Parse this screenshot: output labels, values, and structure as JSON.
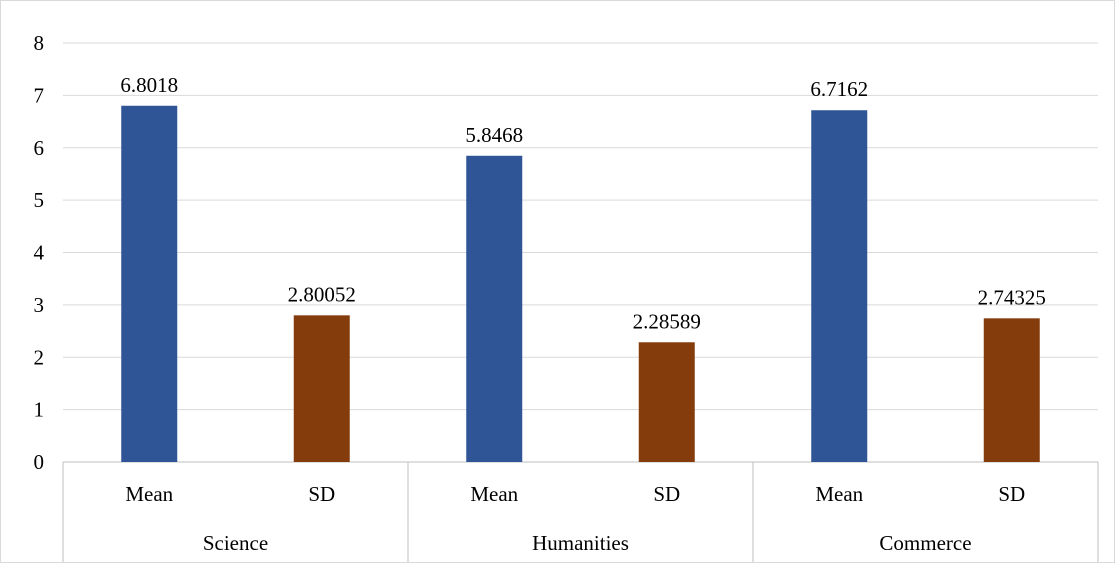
{
  "chart_data": {
    "type": "bar",
    "title": "",
    "xlabel": "",
    "ylabel": "",
    "ylim": [
      0,
      8
    ],
    "yticks": [
      0,
      1,
      2,
      3,
      4,
      5,
      6,
      7,
      8
    ],
    "grid": true,
    "legend": "none",
    "groups": [
      {
        "name": "Science",
        "bars": [
          {
            "label": "Mean",
            "value": 6.8018,
            "value_label": "6.8018",
            "color": "#2f5597"
          },
          {
            "label": "SD",
            "value": 2.80052,
            "value_label": "2.80052",
            "color": "#843c0c"
          }
        ]
      },
      {
        "name": "Humanities",
        "bars": [
          {
            "label": "Mean",
            "value": 5.8468,
            "value_label": "5.8468",
            "color": "#2f5597"
          },
          {
            "label": "SD",
            "value": 2.28589,
            "value_label": "2.28589",
            "color": "#843c0c"
          }
        ]
      },
      {
        "name": "Commerce",
        "bars": [
          {
            "label": "Mean",
            "value": 6.7162,
            "value_label": "6.7162",
            "color": "#2f5597"
          },
          {
            "label": "SD",
            "value": 2.74325,
            "value_label": "2.74325",
            "color": "#843c0c"
          }
        ]
      }
    ],
    "colors": {
      "mean": "#2f5597",
      "sd": "#843c0c",
      "grid": "#d9d9d9",
      "axis": "#bfbfbf"
    }
  }
}
